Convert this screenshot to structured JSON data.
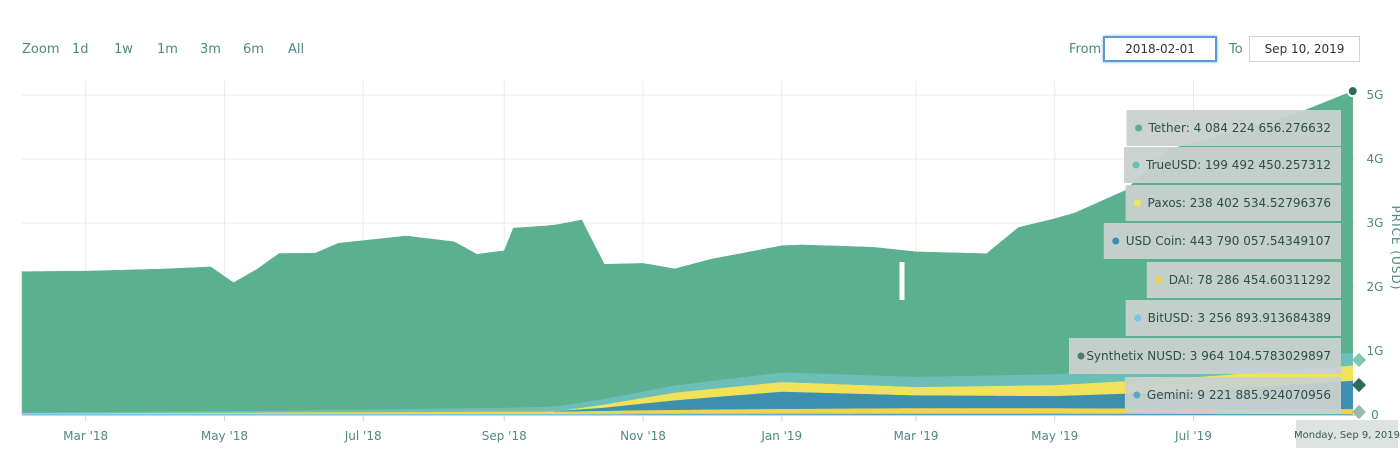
{
  "toolbar": {
    "zoom_label": "Zoom",
    "zoom_buttons": [
      "1d",
      "1w",
      "1m",
      "3m",
      "6m",
      "All"
    ],
    "from_label": "From",
    "from_value": "2018-02-01",
    "to_label": "To",
    "to_value": "Sep 10, 2019"
  },
  "colors": {
    "tether": "#5bb090",
    "trueusd": "#6cbfb6",
    "paxos": "#f0e35a",
    "usdcoin": "#3d8fb0",
    "dai": "#f1d44c",
    "bitusd": "#7cc4e2",
    "synthetix": "#4b7a6f",
    "gemini": "#5aa6cf",
    "tooltip_bg": "#c8d1cd",
    "grid": "#e7ecea"
  },
  "chart_data": {
    "type": "area",
    "stacked": true,
    "x_start": "2018-02-01",
    "x_end": "2019-09-10",
    "xticks": [
      "Mar '18",
      "May '18",
      "Jul '18",
      "Sep '18",
      "Nov '18",
      "Jan '19",
      "Mar '19",
      "May '19",
      "Jul '19"
    ],
    "ylabel": "PRICE (USD)",
    "yticks": [
      "0",
      "1G",
      "2G",
      "3G",
      "4G",
      "5G"
    ],
    "ylim": [
      0,
      5000000000
    ],
    "grid": true,
    "series": [
      {
        "name": "Gemini",
        "points": [
          [
            "2018-02-01",
            0
          ],
          [
            "2018-10-01",
            0
          ],
          [
            "2018-11-01",
            8000000
          ],
          [
            "2019-01-01",
            15000000
          ],
          [
            "2019-05-01",
            20000000
          ],
          [
            "2019-09-09",
            9221885.924070956
          ]
        ]
      },
      {
        "name": "Synthetix NUSD",
        "points": [
          [
            "2018-02-01",
            0
          ],
          [
            "2019-05-01",
            0
          ],
          [
            "2019-09-09",
            3964104.5783029897
          ]
        ]
      },
      {
        "name": "BitUSD",
        "points": [
          [
            "2018-02-01",
            20000000
          ],
          [
            "2018-10-01",
            20000000
          ],
          [
            "2019-09-09",
            3256893.913684389
          ]
        ]
      },
      {
        "name": "DAI",
        "points": [
          [
            "2018-02-01",
            10000000
          ],
          [
            "2018-10-01",
            40000000
          ],
          [
            "2018-12-01",
            60000000
          ],
          [
            "2019-03-01",
            80000000
          ],
          [
            "2019-09-09",
            78286454.60311292
          ]
        ]
      },
      {
        "name": "USD Coin",
        "points": [
          [
            "2018-02-01",
            0
          ],
          [
            "2018-09-20",
            0
          ],
          [
            "2018-10-15",
            50000000
          ],
          [
            "2018-11-15",
            150000000
          ],
          [
            "2019-01-01",
            270000000
          ],
          [
            "2019-03-01",
            200000000
          ],
          [
            "2019-05-01",
            190000000
          ],
          [
            "2019-07-01",
            270000000
          ],
          [
            "2019-09-09",
            443790057.54349107
          ]
        ]
      },
      {
        "name": "Paxos",
        "points": [
          [
            "2018-02-01",
            0
          ],
          [
            "2018-09-25",
            0
          ],
          [
            "2018-10-20",
            60000000
          ],
          [
            "2018-11-15",
            120000000
          ],
          [
            "2019-01-01",
            150000000
          ],
          [
            "2019-03-01",
            130000000
          ],
          [
            "2019-05-01",
            170000000
          ],
          [
            "2019-07-01",
            220000000
          ],
          [
            "2019-09-09",
            238402534.52796376
          ]
        ]
      },
      {
        "name": "TrueUSD",
        "points": [
          [
            "2018-02-01",
            10000000
          ],
          [
            "2018-06-01",
            30000000
          ],
          [
            "2018-09-01",
            60000000
          ],
          [
            "2018-11-01",
            100000000
          ],
          [
            "2019-01-01",
            150000000
          ],
          [
            "2019-05-01",
            170000000
          ],
          [
            "2019-09-09",
            199492450.257312
          ]
        ]
      },
      {
        "name": "Tether",
        "points": [
          [
            "2018-02-01",
            2200000000
          ],
          [
            "2018-03-01",
            2200000000
          ],
          [
            "2018-04-01",
            2220000000
          ],
          [
            "2018-04-25",
            2250000000
          ],
          [
            "2018-05-05",
            2000000000
          ],
          [
            "2018-05-15",
            2200000000
          ],
          [
            "2018-05-25",
            2450000000
          ],
          [
            "2018-06-10",
            2450000000
          ],
          [
            "2018-06-20",
            2600000000
          ],
          [
            "2018-07-20",
            2700000000
          ],
          [
            "2018-08-10",
            2600000000
          ],
          [
            "2018-08-20",
            2400000000
          ],
          [
            "2018-09-01",
            2450000000
          ],
          [
            "2018-09-05",
            2800000000
          ],
          [
            "2018-10-05",
            2850000000
          ],
          [
            "2018-10-15",
            2100000000
          ],
          [
            "2018-11-01",
            2000000000
          ],
          [
            "2018-11-15",
            1820000000
          ],
          [
            "2018-12-01",
            1900000000
          ],
          [
            "2019-01-10",
            2000000000
          ],
          [
            "2019-02-10",
            2000000000
          ],
          [
            "2019-03-01",
            1950000000
          ],
          [
            "2019-04-01",
            1900000000
          ],
          [
            "2019-04-15",
            2300000000
          ],
          [
            "2019-05-10",
            2500000000
          ],
          [
            "2019-06-01",
            2800000000
          ],
          [
            "2019-06-20",
            3400000000
          ],
          [
            "2019-07-20",
            3600000000
          ],
          [
            "2019-08-15",
            3800000000
          ],
          [
            "2019-09-09",
            4084224656.276632
          ]
        ]
      }
    ],
    "tooltip": {
      "date": "Monday, Sep 9, 2019",
      "items": [
        {
          "key": "tether",
          "text": "Tether: 4 084 224 656.276632"
        },
        {
          "key": "trueusd",
          "text": "TrueUSD: 199 492 450.257312"
        },
        {
          "key": "paxos",
          "text": "Paxos: 238 402 534.52796376"
        },
        {
          "key": "usdcoin",
          "text": "USD Coin: 443 790 057.54349107"
        },
        {
          "key": "dai",
          "text": "DAI: 78 286 454.60311292"
        },
        {
          "key": "bitusd",
          "text": "BitUSD: 3 256 893.913684389"
        },
        {
          "key": "synthetix",
          "text": "Synthetix NUSD: 3 964 104.5783029897"
        },
        {
          "key": "gemini",
          "text": "Gemini: 9 221 885.924070956"
        }
      ]
    }
  }
}
